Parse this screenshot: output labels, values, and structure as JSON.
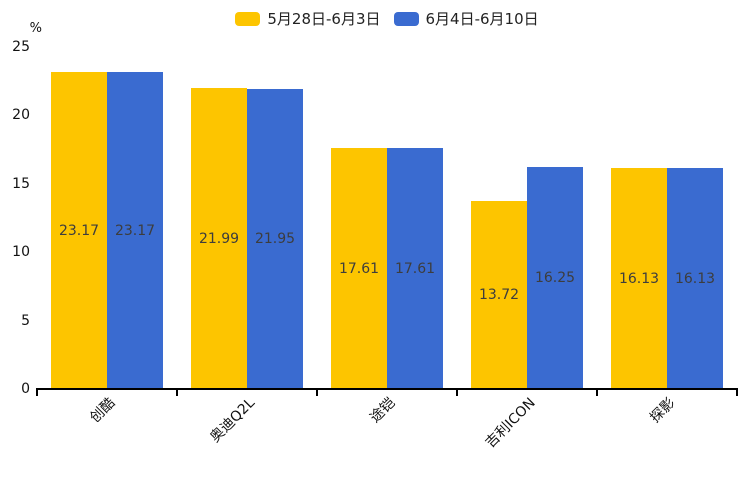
{
  "chart_data": {
    "type": "bar",
    "title": "",
    "categories": [
      "创酷",
      "奥迪Q2L",
      "途铠",
      "吉利ICON",
      "探影"
    ],
    "series": [
      {
        "name": "5月28日-6月3日",
        "color": "#FDC500",
        "values": [
          23.17,
          21.99,
          17.61,
          13.72,
          16.13
        ]
      },
      {
        "name": "6月4日-6月10日",
        "color": "#3A6BD0",
        "values": [
          23.17,
          21.95,
          17.61,
          16.25,
          16.13
        ]
      }
    ],
    "xlabel": "",
    "ylabel": "%",
    "yticks": [
      0,
      5,
      10,
      15,
      20,
      25
    ],
    "ylim": [
      0,
      25
    ],
    "grid": false,
    "legend_position": "top-center",
    "value_labels": "inside-middle",
    "value_label_decimals": 2
  },
  "colors": {
    "background": "#ffffff",
    "axis": "#000000",
    "axis_text": "#111111",
    "value_label_text": "#3d3d3d",
    "series_yellow": "#FDC500",
    "series_blue": "#3A6BD0"
  }
}
